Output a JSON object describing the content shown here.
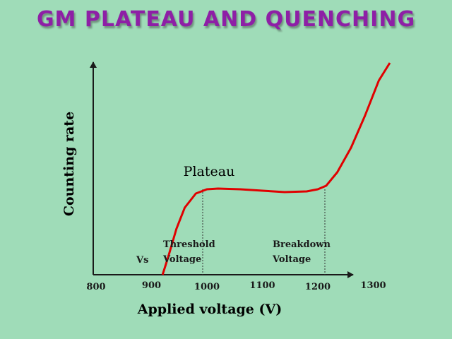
{
  "slide": {
    "title": "GM PLATEAU AND QUENCHING",
    "background_color": "#9fdcb8",
    "title_color": "#8e1fa6"
  },
  "chart_data": {
    "type": "line",
    "xlabel": "Applied voltage (V)",
    "ylabel": "Counting rate",
    "x_ticks": [
      "800",
      "900",
      "1000",
      "1100",
      "1200",
      "1300"
    ],
    "series": [
      {
        "color": "#e00000",
        "points": [
          [
            920,
            0
          ],
          [
            930,
            25
          ],
          [
            945,
            65
          ],
          [
            960,
            95
          ],
          [
            980,
            115
          ],
          [
            1000,
            121
          ],
          [
            1020,
            122
          ],
          [
            1060,
            121
          ],
          [
            1100,
            119
          ],
          [
            1140,
            117
          ],
          [
            1180,
            118
          ],
          [
            1200,
            121
          ],
          [
            1215,
            126
          ],
          [
            1235,
            145
          ],
          [
            1260,
            180
          ],
          [
            1285,
            225
          ],
          [
            1310,
            275
          ],
          [
            1330,
            300
          ]
        ]
      }
    ],
    "annotations": {
      "plateau": "Plateau",
      "vs": "Vs",
      "threshold": "Threshold Voltage",
      "breakdown": "Breakdown Voltage"
    },
    "markers": {
      "threshold_voltage": 1000,
      "breakdown_voltage": 1200
    }
  }
}
